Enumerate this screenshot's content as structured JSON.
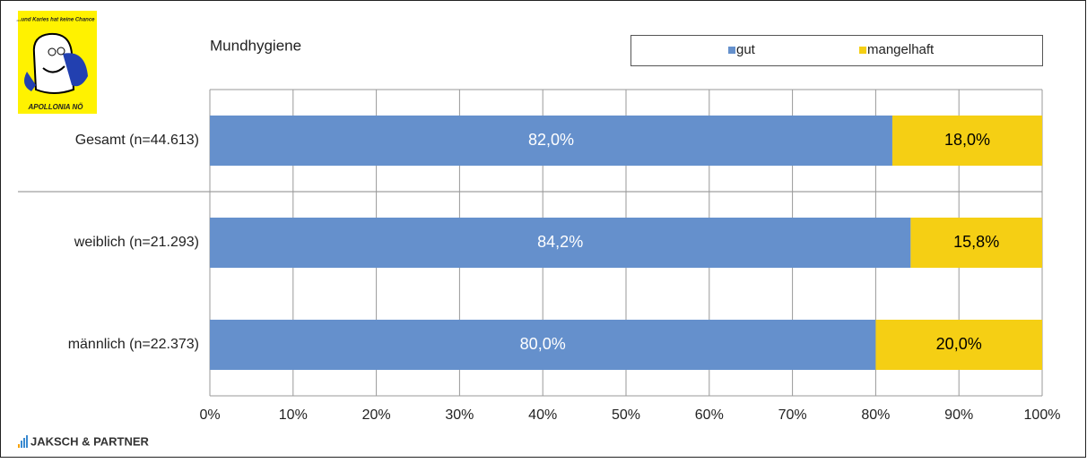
{
  "branding": {
    "logo_text": "...und Karies hat keine Chance",
    "logo_caption": "APOLLONIA NÖ",
    "footer": "JAKSCH & PARTNER"
  },
  "chart_data": {
    "type": "stacked-barh",
    "title": "Mundhygiene",
    "categories": [
      "Gesamt (n=44.613)",
      "weiblich (n=21.293)",
      "männlich (n=22.373)"
    ],
    "series": [
      {
        "name": "gut",
        "color": "#6590cc",
        "values": [
          82.0,
          84.2,
          80.0
        ],
        "value_labels": [
          "82,0%",
          "84,2%",
          "80,0%"
        ],
        "label_color": "#ffffff"
      },
      {
        "name": "mangelhaft",
        "color": "#f5cf14",
        "values": [
          18.0,
          15.8,
          20.0
        ],
        "value_labels": [
          "18,0%",
          "15,8%",
          "20,0%"
        ],
        "label_color": "#000000"
      }
    ],
    "xlim": [
      0,
      100
    ],
    "xticks": [
      {
        "value": 0,
        "label": "0%"
      },
      {
        "value": 10,
        "label": "10%"
      },
      {
        "value": 20,
        "label": "20%"
      },
      {
        "value": 30,
        "label": "30%"
      },
      {
        "value": 40,
        "label": "40%"
      },
      {
        "value": 50,
        "label": "50%"
      },
      {
        "value": 60,
        "label": "60%"
      },
      {
        "value": 70,
        "label": "70%"
      },
      {
        "value": 80,
        "label": "80%"
      },
      {
        "value": 90,
        "label": "90%"
      },
      {
        "value": 100,
        "label": "100%"
      }
    ],
    "grid": true
  }
}
